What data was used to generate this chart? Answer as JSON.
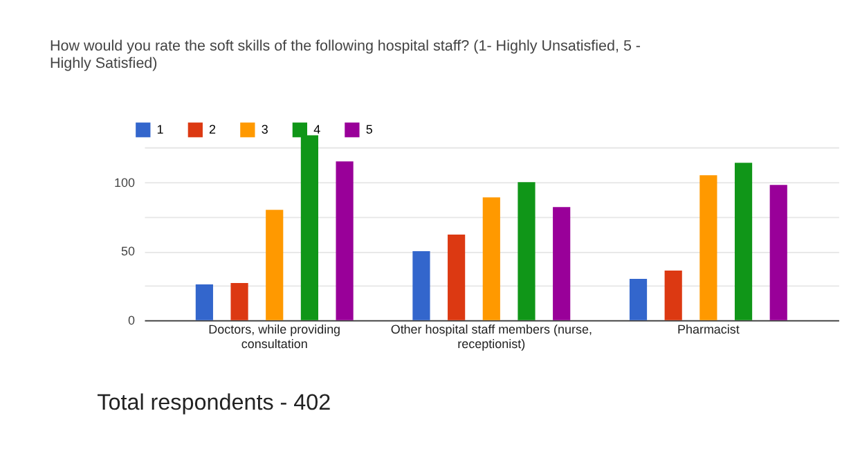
{
  "chart_data": {
    "type": "bar",
    "title": "How would you rate the soft skills of the following hospital staff? (1- Highly Unsatisfied, 5 - Highly Satisfied)",
    "categories": [
      "Doctors, while providing consultation",
      "Other hospital staff members (nurse, receptionist)",
      "Pharmacist"
    ],
    "series": [
      {
        "name": "1",
        "color": "#3366cc",
        "values": [
          26,
          50,
          30
        ]
      },
      {
        "name": "2",
        "color": "#dc3912",
        "values": [
          27,
          62,
          36
        ]
      },
      {
        "name": "3",
        "color": "#ff9900",
        "values": [
          80,
          89,
          105
        ]
      },
      {
        "name": "4",
        "color": "#109618",
        "values": [
          134,
          100,
          114
        ]
      },
      {
        "name": "5",
        "color": "#990099",
        "values": [
          115,
          82,
          98
        ]
      }
    ],
    "ylim": [
      0,
      137
    ],
    "yticks": [
      0,
      {
        "value": 25,
        "label": null
      },
      50,
      {
        "value": 75,
        "label": null
      },
      100,
      {
        "value": 125,
        "label": null
      }
    ],
    "grid": true,
    "legend": "top left",
    "annotations": [
      "Total respondents - 402"
    ]
  }
}
